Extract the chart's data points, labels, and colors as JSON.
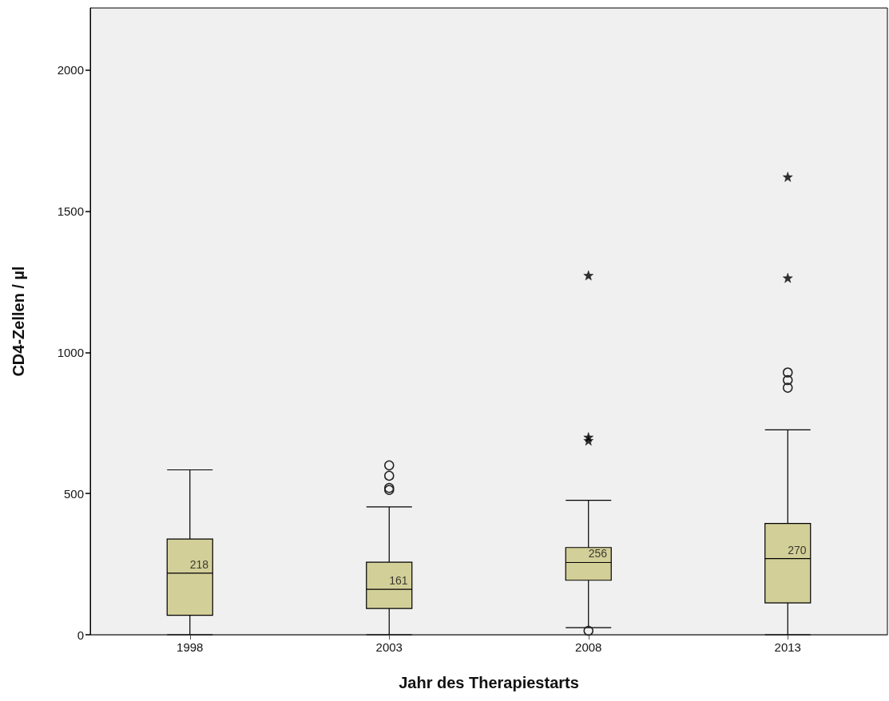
{
  "chart_data": {
    "type": "box",
    "xlabel": "Jahr des Therapiestarts",
    "ylabel": "CD4-Zellen / µl",
    "categories": [
      "1998",
      "2003",
      "2008",
      "2013"
    ],
    "ylim": [
      0,
      2220
    ],
    "yticks": [
      0,
      500,
      1000,
      1500,
      2000
    ],
    "grid": false,
    "series": [
      {
        "color": "#d3cf99",
        "marker": "circle",
        "value_labels": [
          "218",
          "161",
          "256",
          "270"
        ],
        "boxes": [
          {
            "low": 0,
            "q1": 69,
            "median": 218,
            "q3": 339,
            "high": 584
          },
          {
            "low": 0,
            "q1": 93,
            "median": 161,
            "q3": 257,
            "high": 453,
            "outliers": [
              513,
              520,
              563,
              600
            ]
          },
          {
            "low": 25,
            "q1": 193,
            "median": 256,
            "q3": 309,
            "high": 476,
            "outliers": [
              14
            ]
          },
          {
            "low": 0,
            "q1": 113,
            "median": 270,
            "q3": 394,
            "high": 726,
            "outliers": [
              875,
              902,
              929
            ]
          }
        ]
      },
      {
        "type": "scatter",
        "color": "#000000",
        "marker": "star",
        "values": [
          null,
          null,
          1273,
          1622
        ]
      },
      {
        "type": "scatter",
        "color": "#000000",
        "marker": "star",
        "values": [
          null,
          null,
          700,
          1264
        ]
      },
      {
        "type": "scatter",
        "color": "#000000",
        "marker": "star",
        "values": [
          null,
          null,
          688,
          null
        ]
      }
    ]
  }
}
